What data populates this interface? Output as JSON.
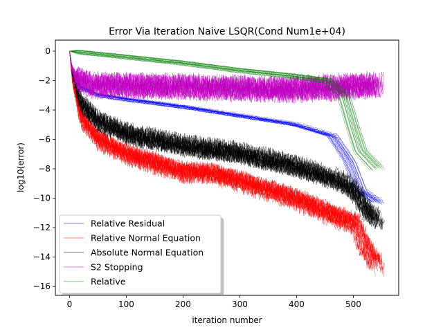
{
  "chart_data": {
    "type": "line",
    "title": "Error Via Iteration Naive LSQR(Cond Num1e+04)",
    "xlabel": "iteration number",
    "ylabel": "log10(error)",
    "xlim": [
      -25,
      580
    ],
    "ylim": [
      -16.6,
      0.75
    ],
    "x_ticks": [
      0,
      100,
      200,
      300,
      400,
      500
    ],
    "y_ticks": [
      0,
      -2,
      -4,
      -6,
      -8,
      -10,
      -12,
      -14,
      -16
    ],
    "grid": false,
    "legend_position": "lower-left",
    "runs_per_series": 20,
    "iterations_per_run": [
      530,
      555
    ],
    "series": [
      {
        "name": "Relative Residual",
        "color": "#0000ff",
        "points": [
          [
            0,
            0
          ],
          [
            5,
            -1.3
          ],
          [
            20,
            -2.5
          ],
          [
            50,
            -3.0
          ],
          [
            100,
            -3.3
          ],
          [
            200,
            -3.8
          ],
          [
            300,
            -4.4
          ],
          [
            400,
            -5.0
          ],
          [
            470,
            -5.8
          ],
          [
            500,
            -7.5
          ],
          [
            520,
            -9.5
          ],
          [
            550,
            -10.3
          ]
        ],
        "noise": 0.05
      },
      {
        "name": "Relative Normal Equation",
        "color": "#ff0000",
        "points": [
          [
            0,
            0
          ],
          [
            5,
            -2.0
          ],
          [
            20,
            -4.5
          ],
          [
            50,
            -6.0
          ],
          [
            100,
            -7.0
          ],
          [
            200,
            -8.2
          ],
          [
            250,
            -8.3
          ],
          [
            300,
            -8.8
          ],
          [
            400,
            -10.0
          ],
          [
            480,
            -11.3
          ],
          [
            510,
            -11.7
          ],
          [
            530,
            -13.5
          ],
          [
            550,
            -14.5
          ]
        ],
        "noise": 0.45
      },
      {
        "name": "Absolute Normal Equation",
        "color": "#000000",
        "points": [
          [
            0,
            0
          ],
          [
            5,
            -1.5
          ],
          [
            20,
            -3.5
          ],
          [
            50,
            -4.7
          ],
          [
            100,
            -5.6
          ],
          [
            200,
            -6.4
          ],
          [
            300,
            -6.9
          ],
          [
            400,
            -7.8
          ],
          [
            480,
            -8.8
          ],
          [
            510,
            -9.5
          ],
          [
            530,
            -10.8
          ],
          [
            550,
            -11.5
          ]
        ],
        "noise": 0.45
      },
      {
        "name": "S2 Stopping",
        "color": "#c000c0",
        "points": [
          [
            0,
            0
          ],
          [
            3,
            -1.0
          ],
          [
            10,
            -1.8
          ],
          [
            40,
            -2.3
          ],
          [
            200,
            -2.4
          ],
          [
            380,
            -2.6
          ],
          [
            450,
            -2.5
          ],
          [
            550,
            -2.3
          ]
        ],
        "noise": 0.55
      },
      {
        "name": "Relative",
        "color": "#008000",
        "points": [
          [
            0,
            0
          ],
          [
            100,
            -0.4
          ],
          [
            200,
            -0.8
          ],
          [
            300,
            -1.3
          ],
          [
            400,
            -1.7
          ],
          [
            460,
            -2.0
          ],
          [
            490,
            -3.0
          ],
          [
            505,
            -5.0
          ],
          [
            520,
            -6.8
          ],
          [
            550,
            -8.0
          ]
        ],
        "noise": 0.03
      }
    ]
  }
}
